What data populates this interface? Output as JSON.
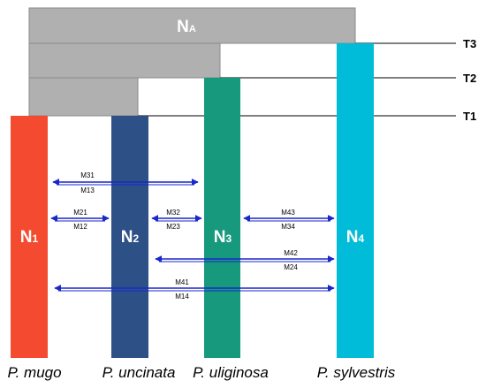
{
  "ancestral": {
    "label_main": "N",
    "label_sub": "A",
    "color": "#b0b0b0"
  },
  "time_lines": [
    "T3",
    "T2",
    "T1"
  ],
  "populations": [
    {
      "label_main": "N",
      "label_sub": "1",
      "species": "P. mugo",
      "color": "#f44a30"
    },
    {
      "label_main": "N",
      "label_sub": "2",
      "species": "P. uncinata",
      "color": "#2d5187"
    },
    {
      "label_main": "N",
      "label_sub": "3",
      "species": "P. uliginosa",
      "color": "#16997d"
    },
    {
      "label_main": "N",
      "label_sub": "4",
      "species": "P. sylvestris",
      "color": "#00bcd8"
    }
  ],
  "migrations": [
    {
      "top": "M31",
      "bottom": "M13"
    },
    {
      "top": "M21",
      "bottom": "M12"
    },
    {
      "top": "M32",
      "bottom": "M23"
    },
    {
      "top": "M43",
      "bottom": "M34"
    },
    {
      "top": "M42",
      "bottom": "M24"
    },
    {
      "top": "M41",
      "bottom": "M14"
    }
  ],
  "colors": {
    "arrow": "#1a27c9",
    "grey_block": "#b0b0b0",
    "grey_stroke": "#8a8a8a"
  }
}
